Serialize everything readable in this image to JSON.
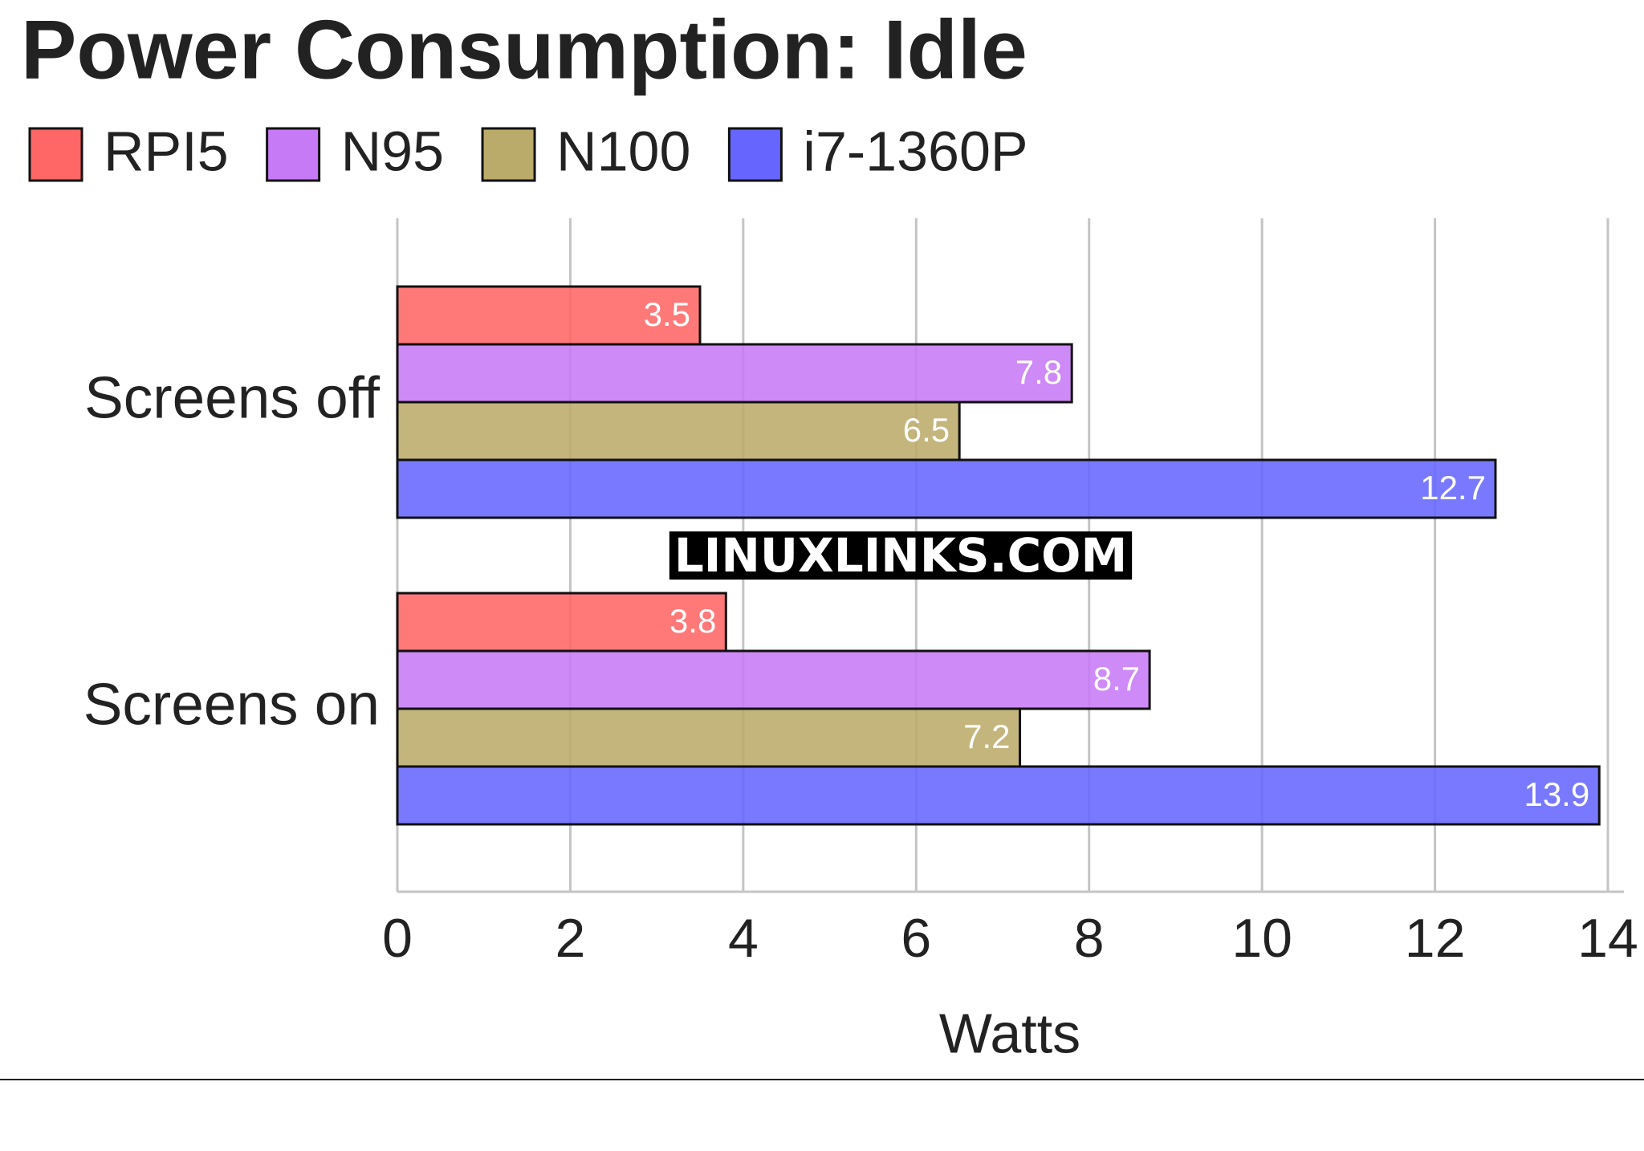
{
  "chart_data": {
    "type": "bar",
    "orientation": "horizontal",
    "title": "Power Consumption: Idle",
    "categories": [
      "Screens off",
      "Screens on"
    ],
    "series": [
      {
        "name": "RPI5",
        "color": "#ff6666",
        "values": [
          3.5,
          3.8
        ]
      },
      {
        "name": "N95",
        "color": "#c77af5",
        "values": [
          7.8,
          8.7
        ]
      },
      {
        "name": "N100",
        "color": "#bbab6a",
        "values": [
          6.5,
          7.2
        ]
      },
      {
        "name": "i7-1360P",
        "color": "#6666ff",
        "values": [
          12.7,
          13.9
        ]
      }
    ],
    "xlabel": "Watts",
    "xlim": [
      0,
      14
    ],
    "xticks": [
      0,
      2,
      4,
      6,
      8,
      10,
      12,
      14
    ],
    "grid": true,
    "watermark": "LINUXLINKS.COM"
  }
}
